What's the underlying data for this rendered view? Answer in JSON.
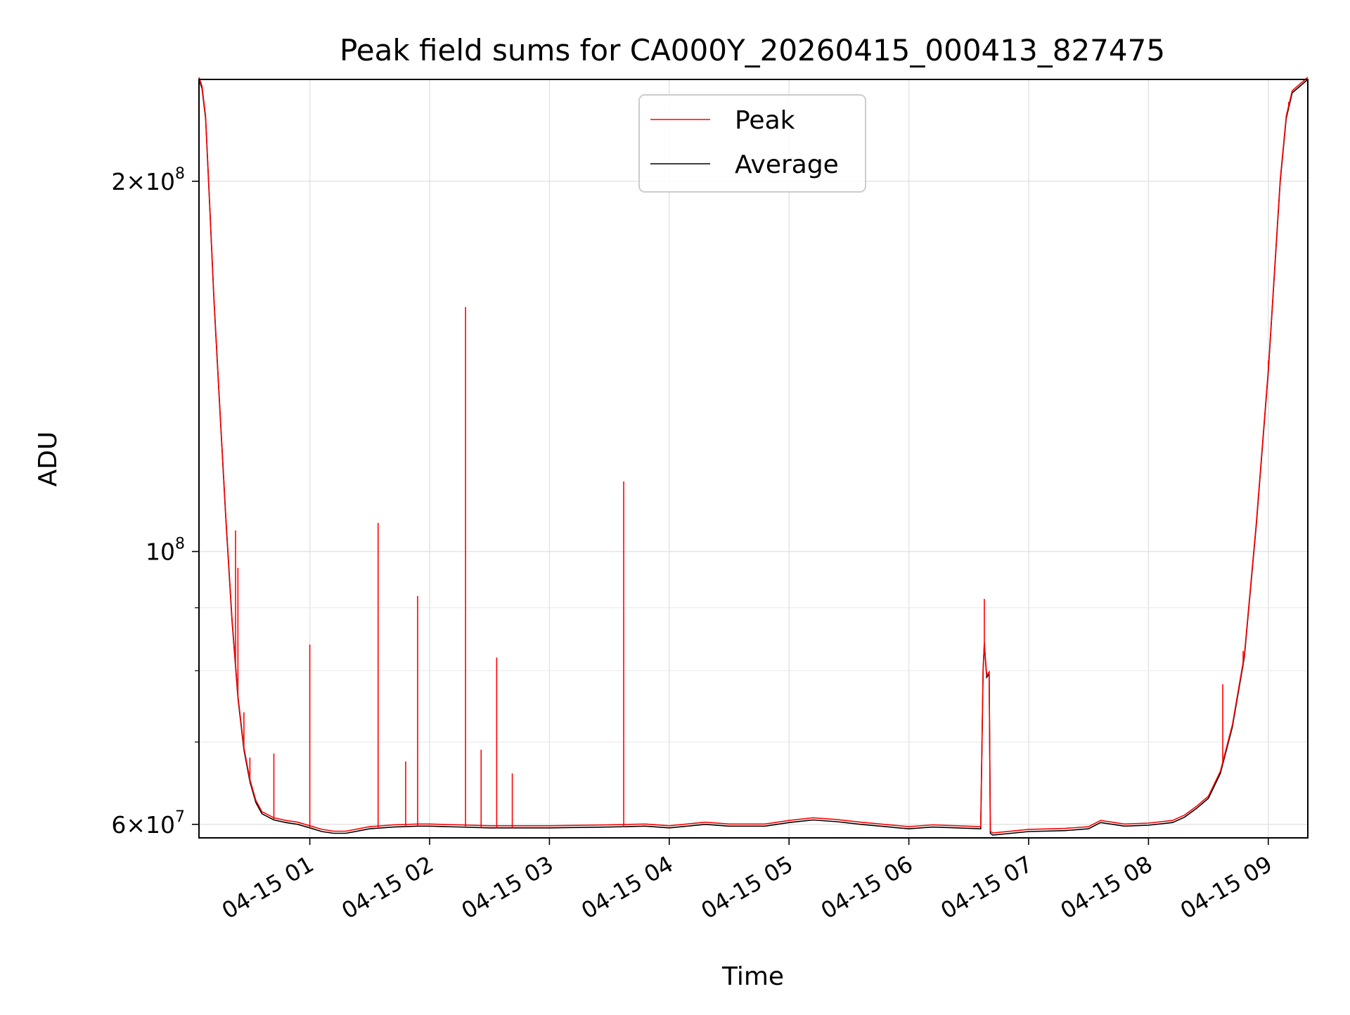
{
  "chart_data": {
    "type": "line",
    "title": "Peak field sums for CA000Y_20260415_000413_827475",
    "xlabel": "Time",
    "ylabel": "ADU",
    "x_unit": "hours since 2026-04-15 00:00",
    "xlim": [
      0.075,
      9.33
    ],
    "ylim": [
      58500000,
      242000000
    ],
    "yscale": "log",
    "grid": true,
    "legend_position": "top-center",
    "x_ticks": [
      {
        "value": 1,
        "label": "04-15 01"
      },
      {
        "value": 2,
        "label": "04-15 02"
      },
      {
        "value": 3,
        "label": "04-15 03"
      },
      {
        "value": 4,
        "label": "04-15 04"
      },
      {
        "value": 5,
        "label": "04-15 05"
      },
      {
        "value": 6,
        "label": "04-15 06"
      },
      {
        "value": 7,
        "label": "04-15 07"
      },
      {
        "value": 8,
        "label": "04-15 08"
      },
      {
        "value": 9,
        "label": "04-15 09"
      }
    ],
    "y_major_ticks": [
      {
        "value": 60000000,
        "base": "6×10",
        "exp": "7"
      },
      {
        "value": 100000000,
        "base": "10",
        "exp": "8"
      },
      {
        "value": 200000000,
        "base": "2×10",
        "exp": "8"
      }
    ],
    "y_minor_ticks": [
      70000000,
      80000000,
      90000000
    ],
    "series": [
      {
        "name": "Average",
        "color": "#000000",
        "x": [
          0.075,
          0.1,
          0.13,
          0.16,
          0.2,
          0.25,
          0.3,
          0.35,
          0.4,
          0.45,
          0.5,
          0.55,
          0.6,
          0.7,
          0.8,
          0.9,
          1.0,
          1.1,
          1.2,
          1.3,
          1.5,
          1.7,
          1.9,
          2.0,
          2.5,
          3.0,
          3.5,
          3.8,
          4.0,
          4.3,
          4.5,
          4.8,
          5.0,
          5.2,
          5.4,
          5.6,
          6.0,
          6.2,
          6.4,
          6.6,
          6.62,
          6.63,
          6.65,
          6.67,
          6.68,
          6.7,
          7.0,
          7.3,
          7.5,
          7.6,
          7.8,
          8.0,
          8.2,
          8.3,
          8.4,
          8.5,
          8.6,
          8.7,
          8.8,
          8.9,
          9.0,
          9.1,
          9.15,
          9.2,
          9.33
        ],
        "y": [
          242000000,
          238000000,
          225000000,
          195000000,
          160000000,
          130000000,
          106000000,
          88000000,
          76000000,
          69000000,
          65000000,
          62500000,
          61200000,
          60500000,
          60200000,
          60000000,
          59600000,
          59200000,
          59000000,
          59000000,
          59500000,
          59700000,
          59800000,
          59800000,
          59600000,
          59600000,
          59700000,
          59800000,
          59600000,
          60000000,
          59800000,
          59800000,
          60200000,
          60500000,
          60300000,
          60000000,
          59500000,
          59700000,
          59600000,
          59500000,
          80000000,
          84000000,
          79000000,
          79500000,
          59000000,
          58800000,
          59200000,
          59300000,
          59500000,
          60200000,
          59800000,
          59900000,
          60200000,
          60800000,
          61800000,
          63000000,
          66000000,
          72000000,
          82000000,
          105000000,
          140000000,
          200000000,
          225000000,
          236000000,
          242000000
        ]
      },
      {
        "name": "Peak",
        "color": "#ff0000",
        "spikes": [
          {
            "x": 0.38,
            "y": 104000000
          },
          {
            "x": 0.4,
            "y": 97000000
          },
          {
            "x": 0.45,
            "y": 74000000
          },
          {
            "x": 0.5,
            "y": 68000000
          },
          {
            "x": 0.7,
            "y": 68500000
          },
          {
            "x": 1.0,
            "y": 84000000
          },
          {
            "x": 1.57,
            "y": 105500000
          },
          {
            "x": 1.8,
            "y": 67500000
          },
          {
            "x": 1.9,
            "y": 92000000
          },
          {
            "x": 2.3,
            "y": 158000000
          },
          {
            "x": 2.43,
            "y": 69000000
          },
          {
            "x": 2.56,
            "y": 82000000
          },
          {
            "x": 2.69,
            "y": 66000000
          },
          {
            "x": 3.62,
            "y": 114000000
          },
          {
            "x": 6.63,
            "y": 91500000
          },
          {
            "x": 8.62,
            "y": 78000000
          },
          {
            "x": 8.79,
            "y": 83000000
          },
          {
            "x": 9.0,
            "y": 143000000
          },
          {
            "x": 9.17,
            "y": 232000000
          }
        ]
      }
    ]
  }
}
